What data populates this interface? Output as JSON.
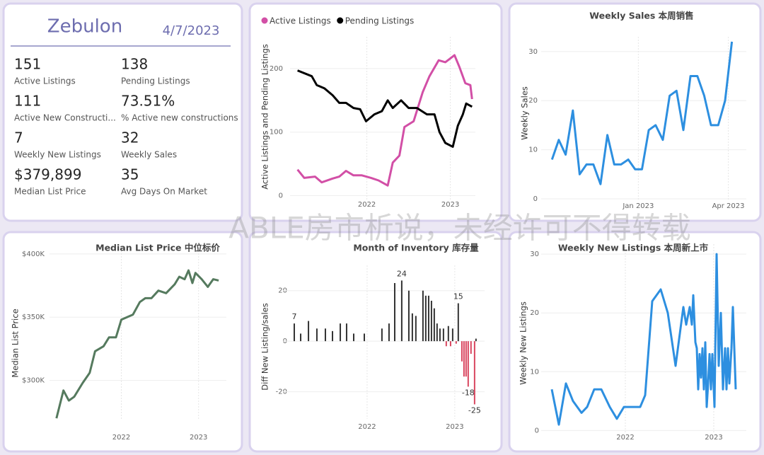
{
  "kpi": {
    "title": "Zebulon",
    "date": "4/7/2023",
    "items": [
      {
        "value": "151",
        "label": "Active Listings"
      },
      {
        "value": "138",
        "label": "Pending Listings"
      },
      {
        "value": "111",
        "label": "Active New Constructi..."
      },
      {
        "value": "73.51%",
        "label": "% Active new constructions"
      },
      {
        "value": "7",
        "label": "Weekly New Listings"
      },
      {
        "value": "32",
        "label": "Weekly Sales"
      },
      {
        "value": "$379,899",
        "label": "Median List Price"
      },
      {
        "value": "35",
        "label": "Avg Days On Market"
      }
    ]
  },
  "watermark": "ABLE房市析说，未经许可不得转载",
  "chart_data": [
    {
      "type": "line",
      "ylabel": "Active Listings and Pending Listings",
      "legend": "top-left",
      "grid": true,
      "xlim": [
        2021.08,
        2023.3
      ],
      "xticks": [
        2022,
        2023
      ],
      "ylim": [
        -15,
        250
      ],
      "yticks": [
        0,
        100,
        200
      ],
      "series": [
        {
          "name": "Active Listings",
          "color": "#d24fa6",
          "x": [
            2021.17,
            2021.25,
            2021.38,
            2021.46,
            2021.59,
            2021.67,
            2021.75,
            2021.84,
            2021.94,
            2022.05,
            2022.14,
            2022.25,
            2022.31,
            2022.39,
            2022.45,
            2022.56,
            2022.67,
            2022.75,
            2022.86,
            2022.94,
            2023.05,
            2023.11,
            2023.18,
            2023.24,
            2023.26
          ],
          "values": [
            41,
            28,
            30,
            21,
            27,
            30,
            39,
            32,
            32,
            28,
            24,
            16,
            52,
            63,
            108,
            117,
            163,
            188,
            213,
            210,
            221,
            202,
            177,
            174,
            152
          ]
        },
        {
          "name": "Pending Listings",
          "color": "#000000",
          "x": [
            2021.17,
            2021.34,
            2021.4,
            2021.49,
            2021.59,
            2021.67,
            2021.75,
            2021.84,
            2021.92,
            2021.99,
            2022.09,
            2022.18,
            2022.25,
            2022.31,
            2022.41,
            2022.5,
            2022.6,
            2022.72,
            2022.81,
            2022.87,
            2022.94,
            2023.03,
            2023.09,
            2023.15,
            2023.19,
            2023.26
          ],
          "values": [
            197,
            188,
            174,
            169,
            158,
            146,
            146,
            138,
            136,
            117,
            128,
            133,
            150,
            138,
            150,
            138,
            138,
            128,
            128,
            100,
            83,
            77,
            110,
            128,
            145,
            140
          ]
        }
      ]
    },
    {
      "type": "line",
      "title": "Weekly Sales 本周销售",
      "ylabel": "Weekly Sales",
      "color": "#2d8fe0",
      "grid": true,
      "xlim": [
        2022.73,
        2023.3
      ],
      "xticks": [
        {
          "value": 2023,
          "label": "Jan 2023"
        },
        {
          "value": 2023.25,
          "label": "Apr 2023"
        }
      ],
      "ylim": [
        -1.3,
        33
      ],
      "yticks": [
        0,
        10,
        20,
        30
      ],
      "x": [
        2022.76,
        2022.779,
        2022.798,
        2022.818,
        2022.837,
        2022.856,
        2022.875,
        2022.895,
        2022.914,
        2022.933,
        2022.952,
        2022.972,
        2022.991,
        2023.01,
        2023.029,
        2023.048,
        2023.068,
        2023.087,
        2023.106,
        2023.125,
        2023.145,
        2023.164,
        2023.183,
        2023.202,
        2023.222,
        2023.241,
        2023.26
      ],
      "values": [
        8,
        12,
        9,
        18,
        5,
        7,
        7,
        3,
        13,
        7,
        7,
        8,
        6,
        6,
        14,
        15,
        12,
        21,
        22,
        14,
        25,
        25,
        21,
        15,
        15,
        20,
        32
      ]
    },
    {
      "type": "line",
      "title": "Median List Price 中位标价",
      "ylabel": "Median List Price",
      "color": "#557a5e",
      "grid": true,
      "xlim": [
        2021.07,
        2023.36
      ],
      "xticks": [
        2022,
        2023
      ],
      "ylim": [
        265000,
        405000
      ],
      "yticks": [
        {
          "value": 300000,
          "label": "$300K"
        },
        {
          "value": 350000,
          "label": "$350K"
        },
        {
          "value": 400000,
          "label": "$400K"
        }
      ],
      "x": [
        2021.16,
        2021.25,
        2021.32,
        2021.39,
        2021.5,
        2021.59,
        2021.66,
        2021.77,
        2021.84,
        2021.93,
        2022.0,
        2022.15,
        2022.24,
        2022.31,
        2022.39,
        2022.48,
        2022.58,
        2022.69,
        2022.75,
        2022.82,
        2022.87,
        2022.92,
        2022.96,
        2023.04,
        2023.12,
        2023.19,
        2023.26
      ],
      "values": [
        270000,
        292000,
        284000,
        287000,
        298000,
        306000,
        323000,
        327000,
        334000,
        334000,
        348000,
        352000,
        362000,
        365000,
        365000,
        371000,
        369000,
        376000,
        382000,
        380000,
        387000,
        377000,
        385000,
        380000,
        374000,
        380000,
        379000
      ]
    },
    {
      "type": "bar",
      "title": "Month of Inventory 库存量",
      "ylabel": "Diff New Listing/sales",
      "color": "#333333",
      "negative_color": "#d9465f",
      "grid": true,
      "xlim": [
        2021.04,
        2023.34
      ],
      "xticks": [
        2022,
        2023
      ],
      "ylim": [
        -33,
        30
      ],
      "yticks": [
        -20,
        0,
        20
      ],
      "x": [
        2021.169,
        2021.242,
        2021.331,
        2021.427,
        2021.524,
        2021.605,
        2021.694,
        2021.766,
        2021.847,
        2021.968,
        2022.169,
        2022.25,
        2022.315,
        2022.395,
        2022.476,
        2022.516,
        2022.556,
        2022.637,
        2022.669,
        2022.702,
        2022.734,
        2022.766,
        2022.798,
        2022.831,
        2022.871,
        2022.903,
        2022.927,
        2022.952,
        2022.976,
        2023.016,
        2023.04,
        2023.081,
        2023.105,
        2023.129,
        2023.153,
        2023.185,
        2023.226,
        2023.242
      ],
      "values": [
        7,
        3,
        8,
        5,
        5,
        4,
        7,
        7,
        3,
        3,
        5,
        7,
        23,
        24,
        20,
        11,
        10,
        20,
        18,
        18,
        16,
        13,
        7,
        5,
        5,
        -2,
        6,
        -2,
        5,
        -1,
        15,
        -8,
        -14,
        -14,
        -18,
        -5,
        -25,
        1
      ],
      "value_labels": [
        "7",
        null,
        null,
        null,
        null,
        null,
        null,
        null,
        null,
        null,
        null,
        null,
        null,
        "24",
        null,
        null,
        null,
        null,
        null,
        null,
        null,
        null,
        null,
        null,
        null,
        null,
        null,
        null,
        null,
        null,
        "15",
        null,
        null,
        null,
        "-18",
        null,
        "-25",
        null
      ]
    },
    {
      "type": "line",
      "title": "Weekly New Listings 本周新上市",
      "ylabel": "Weekly New Listings",
      "color": "#2d8fe0",
      "grid": true,
      "xlim": [
        2021.048,
        2023.368
      ],
      "xticks": [
        2022,
        2023
      ],
      "ylim": [
        -1.4,
        31.7
      ],
      "yticks": [
        0,
        10,
        20,
        30
      ],
      "x": [
        2021.168,
        2021.248,
        2021.328,
        2021.408,
        2021.504,
        2021.568,
        2021.648,
        2021.728,
        2021.824,
        2021.904,
        2021.984,
        2022.064,
        2022.168,
        2022.224,
        2022.304,
        2022.4,
        2022.48,
        2022.568,
        2022.656,
        2022.688,
        2022.728,
        2022.752,
        2022.768,
        2022.792,
        2022.808,
        2022.824,
        2022.84,
        2022.856,
        2022.872,
        2022.888,
        2022.904,
        2022.92,
        2022.936,
        2022.952,
        2022.968,
        2022.984,
        2023.008,
        2023.032,
        2023.056,
        2023.08,
        2023.104,
        2023.128,
        2023.144,
        2023.16,
        2023.176,
        2023.2,
        2023.216,
        2023.248
      ],
      "values": [
        7,
        1,
        8,
        5,
        3,
        4,
        7,
        7,
        4,
        2,
        4,
        4,
        4,
        6,
        22,
        24,
        20,
        11,
        21,
        18,
        21,
        18,
        23,
        15,
        14,
        7,
        13,
        9,
        14,
        7,
        15,
        4,
        8,
        13,
        7,
        13,
        4,
        30,
        11,
        20,
        7,
        14,
        7,
        14,
        8,
        14,
        21,
        7
      ]
    }
  ]
}
